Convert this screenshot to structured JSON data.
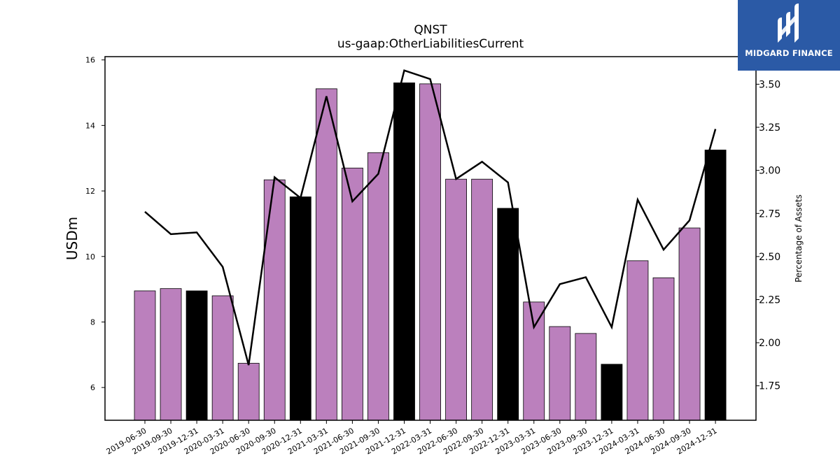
{
  "brand": {
    "name": "MIDGARD FINANCE",
    "bg_color": "#2b5aa6",
    "icon": "midgard-logo-icon"
  },
  "colors": {
    "bar_regular": "#bb80bd",
    "bar_year_end": "#000000",
    "line": "#000000"
  },
  "chart_data": {
    "type": "bar",
    "title": "QNST",
    "subtitle": "us-gaap:OtherLiabilitiesCurrent",
    "ylabel": "USDm",
    "y2label": "Percentage of Assets",
    "ylim": [
      5,
      16.1
    ],
    "y2lim": [
      1.55,
      3.66
    ],
    "yticks": [
      "6",
      "8",
      "10",
      "12",
      "14",
      "16"
    ],
    "y2ticks": [
      "1.75",
      "2.00",
      "2.25",
      "2.50",
      "2.75",
      "3.00",
      "3.25",
      "3.50"
    ],
    "categories": [
      "2019-06-30",
      "2019-09-30",
      "2019-12-31",
      "2020-03-31",
      "2020-06-30",
      "2020-09-30",
      "2020-12-31",
      "2021-03-31",
      "2021-06-30",
      "2021-09-30",
      "2021-12-31",
      "2022-03-31",
      "2022-06-30",
      "2022-09-30",
      "2022-12-31",
      "2023-03-31",
      "2023-06-30",
      "2023-09-30",
      "2023-12-31",
      "2024-03-31",
      "2024-06-30",
      "2024-09-30",
      "2024-12-31"
    ],
    "series": [
      {
        "kind": "bar",
        "axis": "left",
        "values": [
          8.95,
          9.02,
          8.95,
          8.8,
          6.74,
          12.34,
          11.82,
          15.12,
          12.7,
          13.17,
          15.3,
          15.27,
          12.36,
          12.36,
          11.47,
          8.61,
          7.86,
          7.65,
          6.71,
          9.87,
          9.35,
          10.87,
          13.25
        ],
        "year_end": [
          false,
          false,
          true,
          false,
          false,
          false,
          true,
          false,
          false,
          false,
          true,
          false,
          false,
          false,
          true,
          false,
          false,
          false,
          true,
          false,
          false,
          false,
          true
        ]
      },
      {
        "kind": "line",
        "axis": "right",
        "values": [
          2.76,
          2.63,
          2.64,
          2.44,
          1.87,
          2.96,
          2.84,
          3.43,
          2.82,
          2.98,
          3.58,
          3.53,
          2.95,
          3.05,
          2.93,
          2.09,
          2.34,
          2.38,
          2.09,
          2.83,
          2.54,
          2.71,
          3.24
        ]
      }
    ],
    "grid": false
  }
}
